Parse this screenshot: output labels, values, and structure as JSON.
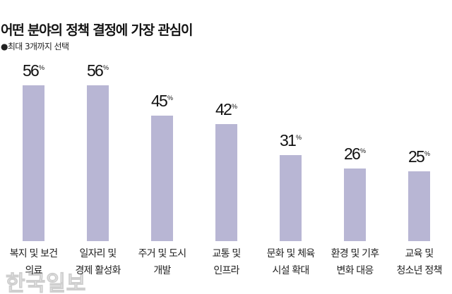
{
  "header": {
    "title": "어떤 분야의 정책 결정에 가장 관심이",
    "subtitle": "●최대 3개까지 선택"
  },
  "watermark": "한국일보",
  "style": {
    "bar_color": "#b8b6d4",
    "text_color": "#141414",
    "background": "#ffffff"
  },
  "chart_data": {
    "type": "bar",
    "title": "어떤 분야의 정책 결정에 가장 관심이",
    "subtitle": "●최대 3개까지 선택",
    "xlabel": "",
    "ylabel": "",
    "unit": "%",
    "grid": false,
    "legend": null,
    "ylim": [
      0,
      60
    ],
    "categories": [
      [
        "복지 및 보건",
        "의료"
      ],
      [
        "일자리 및",
        "경제 활성화"
      ],
      [
        "주거 및 도시",
        "개발"
      ],
      [
        "교통 및",
        "인프라"
      ],
      [
        "문화 및 체육",
        "시설 확대"
      ],
      [
        "환경 및 기후",
        "변화 대응"
      ],
      [
        "교육 및",
        "청소년 정책"
      ]
    ],
    "values": [
      56,
      56,
      45,
      42,
      31,
      26,
      25
    ],
    "value_labels": [
      "56",
      "56",
      "45",
      "42",
      "31",
      "26",
      "25"
    ],
    "pct_symbol": "%"
  }
}
